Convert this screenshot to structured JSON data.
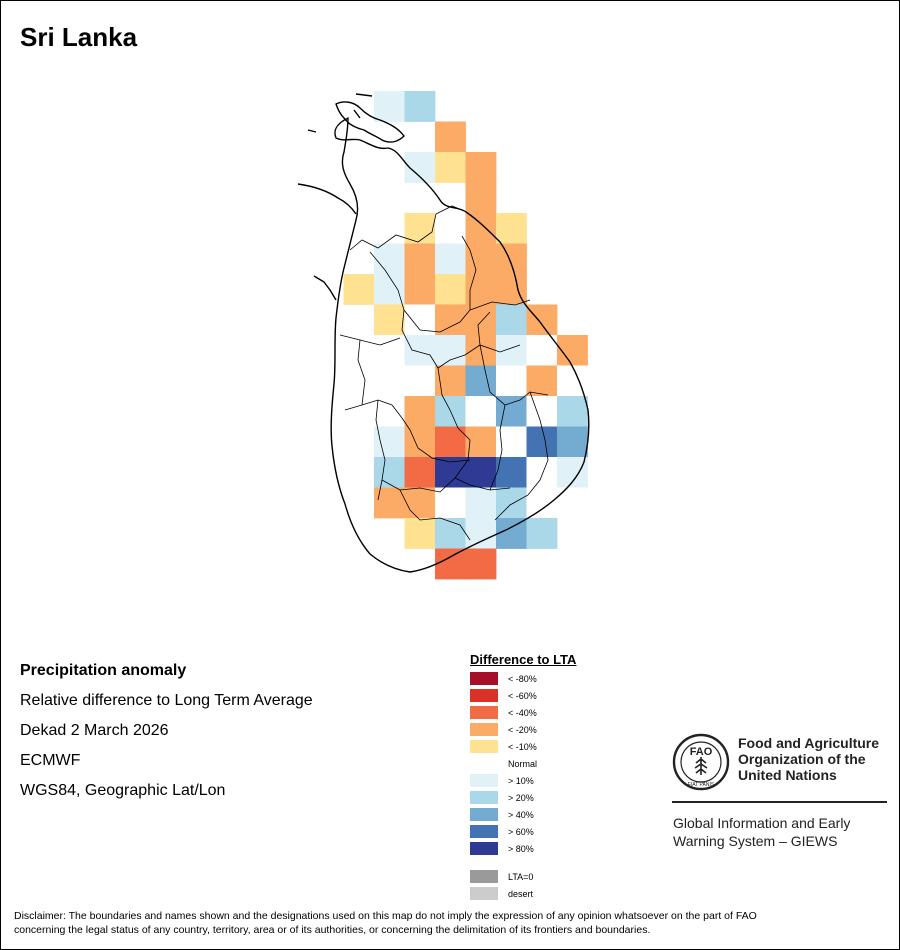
{
  "map": {
    "title": "Sri Lanka",
    "grid_columns": 9,
    "grid_rows": 17,
    "grid": [
      [
        -1,
        -1,
        1,
        2,
        -1,
        -1,
        -1,
        -1,
        -1
      ],
      [
        -1,
        -1,
        -1,
        -1,
        -6,
        -1,
        -1,
        -1,
        -1
      ],
      [
        -1,
        -1,
        -1,
        1,
        -5,
        -6,
        -1,
        -1,
        -1
      ],
      [
        -1,
        -1,
        -1,
        -1,
        -1,
        -6,
        -1,
        -1,
        -1
      ],
      [
        -1,
        -1,
        -1,
        -5,
        0,
        -6,
        -5,
        -1,
        -1
      ],
      [
        -1,
        -1,
        1,
        -6,
        1,
        -6,
        -6,
        -1,
        -1
      ],
      [
        -1,
        -5,
        1,
        -6,
        -5,
        -6,
        -6,
        -1,
        -1
      ],
      [
        -1,
        -1,
        -5,
        0,
        -6,
        -6,
        2,
        -6,
        -1
      ],
      [
        -1,
        -1,
        0,
        1,
        1,
        -6,
        1,
        0,
        -6
      ],
      [
        -1,
        -1,
        0,
        0,
        -6,
        3,
        0,
        -6,
        0
      ],
      [
        -1,
        -1,
        0,
        -6,
        2,
        0,
        3,
        0,
        2
      ],
      [
        -1,
        -1,
        1,
        -6,
        -7,
        -6,
        0,
        4,
        3
      ],
      [
        -1,
        -1,
        2,
        -7,
        5,
        5,
        4,
        0,
        1
      ],
      [
        -1,
        -1,
        -6,
        -6,
        0,
        1,
        2,
        0,
        0
      ],
      [
        -1,
        -1,
        -1,
        -5,
        2,
        1,
        3,
        2,
        -1
      ],
      [
        -1,
        -1,
        -1,
        -1,
        -7,
        -7,
        -1,
        -1,
        -1
      ],
      [
        -1,
        -1,
        -1,
        -1,
        -1,
        -1,
        -1,
        -1,
        -1
      ]
    ]
  },
  "info": {
    "heading": "Precipitation anomaly",
    "line1": "Relative difference to Long Term Average",
    "line2": "Dekad 2 March 2026",
    "line3": "ECMWF",
    "line4": "WGS84, Geographic Lat/Lon"
  },
  "legend": {
    "title": "Difference to LTA",
    "items": [
      {
        "label": "< -80%",
        "color": "#a50f27"
      },
      {
        "label": "< -60%",
        "color": "#d73128"
      },
      {
        "label": "< -40%",
        "color": "#f26b44"
      },
      {
        "label": "< -20%",
        "color": "#fbab65"
      },
      {
        "label": "< -10%",
        "color": "#fee191"
      },
      {
        "label": "Normal",
        "color": "#ffffff"
      },
      {
        "label": "> 10%",
        "color": "#e0f2f8"
      },
      {
        "label": "> 20%",
        "color": "#aad8e9"
      },
      {
        "label": "> 40%",
        "color": "#74acd1"
      },
      {
        "label": "> 60%",
        "color": "#4473b4"
      },
      {
        "label": "> 80%",
        "color": "#2e3a94"
      },
      {
        "label": "LTA=0",
        "color": "#9a9a9a"
      },
      {
        "label": "desert",
        "color": "#cccccc"
      }
    ]
  },
  "fao": {
    "logo_letters": "FAO",
    "logo_motto": "FIAT PANIS",
    "name_line1": "Food and Agriculture",
    "name_line2": "Organization of the",
    "name_line3": "United Nations",
    "giews_line1": "Global Information and Early",
    "giews_line2": "Warning System – GIEWS"
  },
  "disclaimer": {
    "line1": "Disclaimer: The boundaries and names shown and the designations used on this map do not imply the expression of any opinion whatsoever on the part of FAO",
    "line2": "concerning the legal status of any country, territory, area or of its authorities, or concerning the delimitation of its frontiers and boundaries."
  }
}
